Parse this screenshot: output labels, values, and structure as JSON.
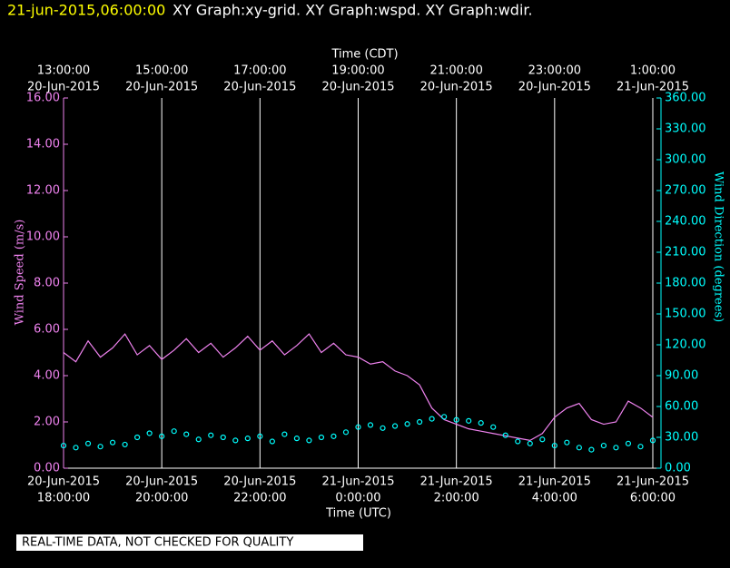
{
  "chart_data": {
    "type": "line-scatter",
    "title": [
      "21-jun-2015,06:00:00",
      "XY Graph:xy-grid.  XY Graph:wspd.  XY Graph:wdir."
    ],
    "top_axis_label": "Time (CDT)",
    "x_axis_label": "Time (UTC)",
    "y_axis_label": "Wind Speed (m/s)",
    "y2_axis_label": "Wind Direction (degrees)",
    "footer": "REAL-TIME DATA, NOT CHECKED FOR QUALITY",
    "xlim": [
      "2015-06-20 18:00",
      "2015-06-21 06:10"
    ],
    "xticks": [
      {
        "value": "2015-06-20 18:00",
        "label": [
          "20-Jun-2015",
          "18:00:00"
        ]
      },
      {
        "value": "2015-06-20 20:00",
        "label": [
          "20-Jun-2015",
          "20:00:00"
        ]
      },
      {
        "value": "2015-06-20 22:00",
        "label": [
          "20-Jun-2015",
          "22:00:00"
        ]
      },
      {
        "value": "2015-06-21 00:00",
        "label": [
          "21-Jun-2015",
          "0:00:00"
        ]
      },
      {
        "value": "2015-06-21 02:00",
        "label": [
          "21-Jun-2015",
          "2:00:00"
        ]
      },
      {
        "value": "2015-06-21 04:00",
        "label": [
          "21-Jun-2015",
          "4:00:00"
        ]
      },
      {
        "value": "2015-06-21 06:00",
        "label": [
          "21-Jun-2015",
          "6:00:00"
        ]
      }
    ],
    "top_ticks": [
      {
        "value": "2015-06-20 18:00",
        "label": [
          "13:00:00",
          "20-Jun-2015"
        ]
      },
      {
        "value": "2015-06-20 20:00",
        "label": [
          "15:00:00",
          "20-Jun-2015"
        ]
      },
      {
        "value": "2015-06-20 22:00",
        "label": [
          "17:00:00",
          "20-Jun-2015"
        ]
      },
      {
        "value": "2015-06-21 00:00",
        "label": [
          "19:00:00",
          "20-Jun-2015"
        ]
      },
      {
        "value": "2015-06-21 02:00",
        "label": [
          "21:00:00",
          "20-Jun-2015"
        ]
      },
      {
        "value": "2015-06-21 04:00",
        "label": [
          "23:00:00",
          "20-Jun-2015"
        ]
      },
      {
        "value": "2015-06-21 06:00",
        "label": [
          "1:00:00",
          "21-Jun-2015"
        ]
      }
    ],
    "grid": true,
    "ylim": [
      0,
      16
    ],
    "yticks": [
      {
        "value": 0,
        "label": "0.00"
      },
      {
        "value": 2,
        "label": "2.00"
      },
      {
        "value": 4,
        "label": "4.00"
      },
      {
        "value": 6,
        "label": "6.00"
      },
      {
        "value": 8,
        "label": "8.00"
      },
      {
        "value": 10,
        "label": "10.00"
      },
      {
        "value": 12,
        "label": "12.00"
      },
      {
        "value": 14,
        "label": "14.00"
      },
      {
        "value": 16,
        "label": "16.00"
      }
    ],
    "y2lim": [
      0,
      360
    ],
    "y2ticks": [
      {
        "value": 0,
        "label": "0.00"
      },
      {
        "value": 30,
        "label": "30.00"
      },
      {
        "value": 60,
        "label": "60.00"
      },
      {
        "value": 90,
        "label": "90.00"
      },
      {
        "value": 120,
        "label": "120.00"
      },
      {
        "value": 150,
        "label": "150.00"
      },
      {
        "value": 180,
        "label": "180.00"
      },
      {
        "value": 210,
        "label": "210.00"
      },
      {
        "value": 240,
        "label": "240.00"
      },
      {
        "value": 270,
        "label": "270.00"
      },
      {
        "value": 300,
        "label": "300.00"
      },
      {
        "value": 330,
        "label": "330.00"
      },
      {
        "value": 360,
        "label": "360.00"
      }
    ],
    "x": [
      "2015-06-20 18:00",
      "2015-06-20 18:15",
      "2015-06-20 18:30",
      "2015-06-20 18:45",
      "2015-06-20 19:00",
      "2015-06-20 19:15",
      "2015-06-20 19:30",
      "2015-06-20 19:45",
      "2015-06-20 20:00",
      "2015-06-20 20:15",
      "2015-06-20 20:30",
      "2015-06-20 20:45",
      "2015-06-20 21:00",
      "2015-06-20 21:15",
      "2015-06-20 21:30",
      "2015-06-20 21:45",
      "2015-06-20 22:00",
      "2015-06-20 22:15",
      "2015-06-20 22:30",
      "2015-06-20 22:45",
      "2015-06-20 23:00",
      "2015-06-20 23:15",
      "2015-06-20 23:30",
      "2015-06-20 23:45",
      "2015-06-21 00:00",
      "2015-06-21 00:15",
      "2015-06-21 00:30",
      "2015-06-21 00:45",
      "2015-06-21 01:00",
      "2015-06-21 01:15",
      "2015-06-21 01:30",
      "2015-06-21 01:45",
      "2015-06-21 02:00",
      "2015-06-21 02:15",
      "2015-06-21 02:30",
      "2015-06-21 02:45",
      "2015-06-21 03:00",
      "2015-06-21 03:15",
      "2015-06-21 03:30",
      "2015-06-21 03:45",
      "2015-06-21 04:00",
      "2015-06-21 04:15",
      "2015-06-21 04:30",
      "2015-06-21 04:45",
      "2015-06-21 05:00",
      "2015-06-21 05:15",
      "2015-06-21 05:30",
      "2015-06-21 05:45",
      "2015-06-21 06:00"
    ],
    "series": [
      {
        "name": "wspd",
        "color": "#ee82ee",
        "kind": "line",
        "values": [
          5.0,
          4.6,
          5.5,
          4.8,
          5.2,
          5.8,
          4.9,
          5.3,
          4.7,
          5.1,
          5.6,
          5.0,
          5.4,
          4.8,
          5.2,
          5.7,
          5.1,
          5.5,
          4.9,
          5.3,
          5.8,
          5.0,
          5.4,
          4.9,
          4.8,
          4.5,
          4.6,
          4.2,
          4.0,
          3.6,
          2.6,
          2.1,
          1.9,
          1.7,
          1.6,
          1.5,
          1.4,
          1.3,
          1.2,
          1.5,
          2.2,
          2.6,
          2.8,
          2.1,
          1.9,
          2.0,
          2.9,
          2.6,
          2.2
        ]
      },
      {
        "name": "wdir",
        "color": "#00ffff",
        "kind": "scatter",
        "axis": "y2",
        "values": [
          22,
          20,
          24,
          21,
          25,
          23,
          30,
          34,
          31,
          36,
          33,
          28,
          32,
          30,
          27,
          29,
          31,
          26,
          33,
          29,
          27,
          30,
          31,
          35,
          40,
          42,
          39,
          41,
          43,
          45,
          48,
          50,
          47,
          46,
          44,
          40,
          32,
          26,
          24,
          28,
          22,
          25,
          20,
          18,
          22,
          20,
          24,
          21,
          27
        ]
      }
    ]
  }
}
